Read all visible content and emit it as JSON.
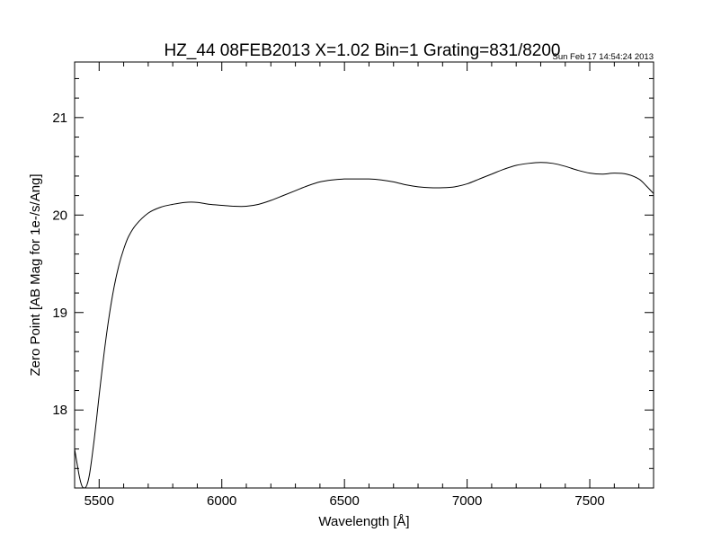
{
  "chart_data": {
    "type": "line",
    "title": "HZ_44 08FEB2013 X=1.02 Bin=1 Grating=831/8200",
    "timestamp": "Sun Feb 17 14:54:24 2013",
    "xlabel": "Wavelength [Å]",
    "ylabel": "Zero Point [AB Mag for 1e-/s/Ang]",
    "xlim": [
      5400,
      7760
    ],
    "ylim": [
      17.2,
      21.57
    ],
    "xticks": [
      5500,
      6000,
      6500,
      7000,
      7500
    ],
    "xtick_labels": [
      "5500",
      "6000",
      "6500",
      "7000",
      "7500"
    ],
    "yticks": [
      18,
      19,
      20,
      21
    ],
    "ytick_labels": [
      "18",
      "19",
      "20",
      "21"
    ],
    "x_minor_step": 100,
    "y_minor_step": 0.2,
    "grid": false,
    "legend": "none",
    "line_color": "#000000",
    "series": [
      {
        "x": [
          5400,
          5410,
          5420,
          5430,
          5440,
          5450,
          5460,
          5470,
          5480,
          5490,
          5500,
          5520,
          5540,
          5560,
          5580,
          5600,
          5620,
          5650,
          5700,
          5750,
          5800,
          5850,
          5900,
          5950,
          6000,
          6050,
          6100,
          6150,
          6200,
          6250,
          6300,
          6350,
          6400,
          6450,
          6500,
          6550,
          6600,
          6650,
          6700,
          6750,
          6800,
          6850,
          6900,
          6950,
          7000,
          7050,
          7100,
          7150,
          7200,
          7250,
          7300,
          7350,
          7400,
          7450,
          7500,
          7550,
          7600,
          7650,
          7700,
          7730,
          7760
        ],
        "y": [
          17.6,
          17.45,
          17.31,
          17.22,
          17.2,
          17.23,
          17.33,
          17.5,
          17.7,
          17.92,
          18.15,
          18.58,
          18.95,
          19.25,
          19.48,
          19.65,
          19.78,
          19.9,
          20.02,
          20.08,
          20.11,
          20.13,
          20.13,
          20.11,
          20.1,
          20.09,
          20.09,
          20.11,
          20.15,
          20.2,
          20.25,
          20.3,
          20.34,
          20.36,
          20.37,
          20.37,
          20.37,
          20.36,
          20.34,
          20.31,
          20.29,
          20.28,
          20.28,
          20.29,
          20.32,
          20.37,
          20.42,
          20.47,
          20.51,
          20.53,
          20.54,
          20.53,
          20.5,
          20.46,
          20.43,
          20.42,
          20.43,
          20.42,
          20.37,
          20.3,
          20.22
        ]
      }
    ]
  }
}
